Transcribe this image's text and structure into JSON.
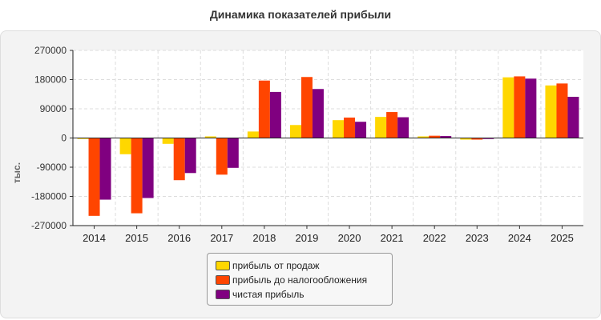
{
  "chart_data": {
    "type": "bar",
    "title": "Динамика показателей прибыли",
    "ylabel": "тыс.",
    "xlabel": "",
    "ylim": [
      -270000,
      270000
    ],
    "yticks": [
      "270000",
      "180000",
      "90000",
      "0",
      "-90000",
      "-180000",
      "-270000"
    ],
    "categories": [
      "2014",
      "2015",
      "2016",
      "2017",
      "2018",
      "2019",
      "2020",
      "2021",
      "2022",
      "2023",
      "2024",
      "2025"
    ],
    "grid": true,
    "legend_position": "bottom-center",
    "series": [
      {
        "name": "прибыль от продаж",
        "color": "#ffd700",
        "values": [
          -3000,
          -50000,
          -18000,
          5000,
          20000,
          40000,
          55000,
          65000,
          5000,
          -5000,
          187000,
          162000
        ]
      },
      {
        "name": "прибыль до налогообложения",
        "color": "#ff4500",
        "values": [
          -240000,
          -232000,
          -130000,
          -113000,
          177000,
          188000,
          63000,
          80000,
          7000,
          -5000,
          190000,
          168000
        ]
      },
      {
        "name": "чистая прибыль",
        "color": "#800080",
        "values": [
          -190000,
          -185000,
          -108000,
          -92000,
          142000,
          151000,
          50000,
          64000,
          6000,
          -3000,
          183000,
          127000
        ]
      }
    ]
  }
}
